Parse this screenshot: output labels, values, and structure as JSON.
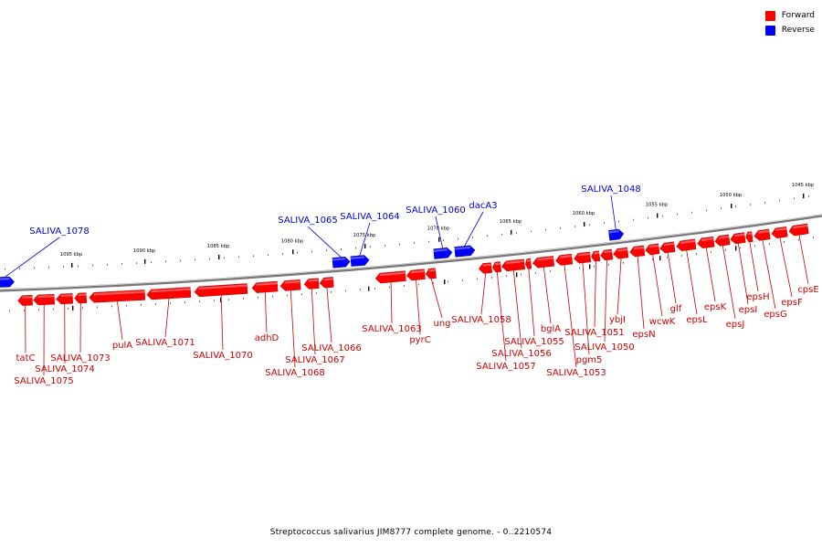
{
  "caption": "Streptococcus salivarius JIM8777 complete genome. - 0..2210574",
  "legend": [
    {
      "label": "Forward",
      "color": "#ff0000"
    },
    {
      "label": "Reverse",
      "color": "#0000ff"
    }
  ],
  "colors": {
    "forward": "#ff0000",
    "forward_label": "#cc0000",
    "reverse": "#0000ff",
    "reverse_label": "#0000cc",
    "backbone": "#777777"
  },
  "ticks": [
    "1095 kbp",
    "1090 kbp",
    "1085 kbp",
    "1080 kbp",
    "1075 kbp",
    "1070 kbp",
    "1065 kbp",
    "1060 kbp",
    "1055 kbp",
    "1050 kbp",
    "1045 kbp"
  ],
  "genes": [
    {
      "name": "SALIVA_1078",
      "strand": "reverse"
    },
    {
      "name": "SALIVA_1065",
      "strand": "reverse"
    },
    {
      "name": "SALIVA_1064",
      "strand": "reverse"
    },
    {
      "name": "SALIVA_1060",
      "strand": "reverse"
    },
    {
      "name": "dacA3",
      "strand": "reverse"
    },
    {
      "name": "SALIVA_1048",
      "strand": "reverse"
    },
    {
      "name": "tatC",
      "strand": "forward"
    },
    {
      "name": "SALIVA_1075",
      "strand": "forward"
    },
    {
      "name": "SALIVA_1074",
      "strand": "forward"
    },
    {
      "name": "SALIVA_1073",
      "strand": "forward"
    },
    {
      "name": "pulA",
      "strand": "forward"
    },
    {
      "name": "SALIVA_1071",
      "strand": "forward"
    },
    {
      "name": "SALIVA_1070",
      "strand": "forward"
    },
    {
      "name": "adhD",
      "strand": "forward"
    },
    {
      "name": "SALIVA_1068",
      "strand": "forward"
    },
    {
      "name": "SALIVA_1067",
      "strand": "forward"
    },
    {
      "name": "SALIVA_1066",
      "strand": "forward"
    },
    {
      "name": "SALIVA_1063",
      "strand": "forward"
    },
    {
      "name": "pyrC",
      "strand": "forward"
    },
    {
      "name": "ung",
      "strand": "forward"
    },
    {
      "name": "SALIVA_1058",
      "strand": "forward"
    },
    {
      "name": "SALIVA_1057",
      "strand": "forward"
    },
    {
      "name": "SALIVA_1056",
      "strand": "forward"
    },
    {
      "name": "SALIVA_1055",
      "strand": "forward"
    },
    {
      "name": "bglA",
      "strand": "forward"
    },
    {
      "name": "SALIVA_1053",
      "strand": "forward"
    },
    {
      "name": "pgm5",
      "strand": "forward"
    },
    {
      "name": "SALIVA_1051",
      "strand": "forward"
    },
    {
      "name": "SALIVA_1050",
      "strand": "forward"
    },
    {
      "name": "ybjI",
      "strand": "forward"
    },
    {
      "name": "epsN",
      "strand": "forward"
    },
    {
      "name": "wcwK",
      "strand": "forward"
    },
    {
      "name": "glf",
      "strand": "forward"
    },
    {
      "name": "epsL",
      "strand": "forward"
    },
    {
      "name": "epsK",
      "strand": "forward"
    },
    {
      "name": "epsJ",
      "strand": "forward"
    },
    {
      "name": "epsI",
      "strand": "forward"
    },
    {
      "name": "epsH",
      "strand": "forward"
    },
    {
      "name": "epsG",
      "strand": "forward"
    },
    {
      "name": "epsF",
      "strand": "forward"
    },
    {
      "name": "cpsE",
      "strand": "forward"
    }
  ]
}
